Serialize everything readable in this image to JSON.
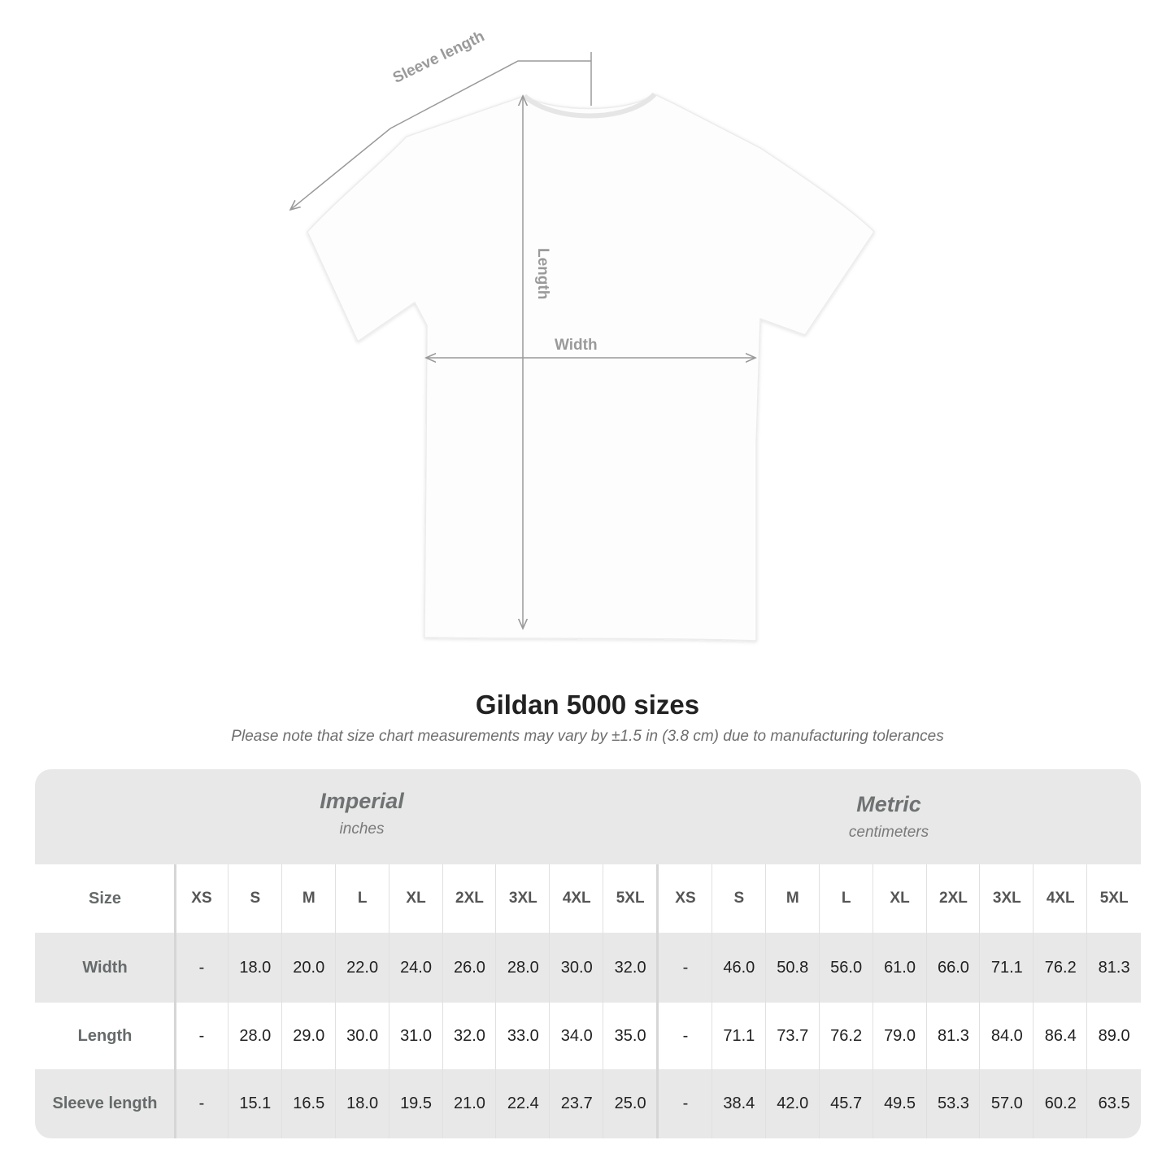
{
  "diagram": {
    "sleeve_label": "Sleeve length",
    "length_label": "Length",
    "width_label": "Width"
  },
  "title": "Gildan 5000 sizes",
  "note": "Please note that size chart measurements may vary by ±1.5 in (3.8 cm) due to manufacturing tolerances",
  "table": {
    "imperial": {
      "title": "Imperial",
      "unit": "inches"
    },
    "metric": {
      "title": "Metric",
      "unit": "centimeters"
    },
    "size_label": "Size",
    "sizes": [
      "XS",
      "S",
      "M",
      "L",
      "XL",
      "2XL",
      "3XL",
      "4XL",
      "5XL"
    ],
    "rows": [
      {
        "label": "Width",
        "imperial": [
          "-",
          "18.0",
          "20.0",
          "22.0",
          "24.0",
          "26.0",
          "28.0",
          "30.0",
          "32.0"
        ],
        "metric": [
          "-",
          "46.0",
          "50.8",
          "56.0",
          "61.0",
          "66.0",
          "71.1",
          "76.2",
          "81.3"
        ]
      },
      {
        "label": "Length",
        "imperial": [
          "-",
          "28.0",
          "29.0",
          "30.0",
          "31.0",
          "32.0",
          "33.0",
          "34.0",
          "35.0"
        ],
        "metric": [
          "-",
          "71.1",
          "73.7",
          "76.2",
          "79.0",
          "81.3",
          "84.0",
          "86.4",
          "89.0"
        ]
      },
      {
        "label": "Sleeve length",
        "imperial": [
          "-",
          "15.1",
          "16.5",
          "18.0",
          "19.5",
          "21.0",
          "22.4",
          "23.7",
          "25.0"
        ],
        "metric": [
          "-",
          "38.4",
          "42.0",
          "45.7",
          "49.5",
          "53.3",
          "57.0",
          "60.2",
          "63.5"
        ]
      }
    ]
  },
  "colors": {
    "band": "#e8e8e8",
    "dimension_line": "#9a9a9a",
    "label": "#666a6b"
  }
}
